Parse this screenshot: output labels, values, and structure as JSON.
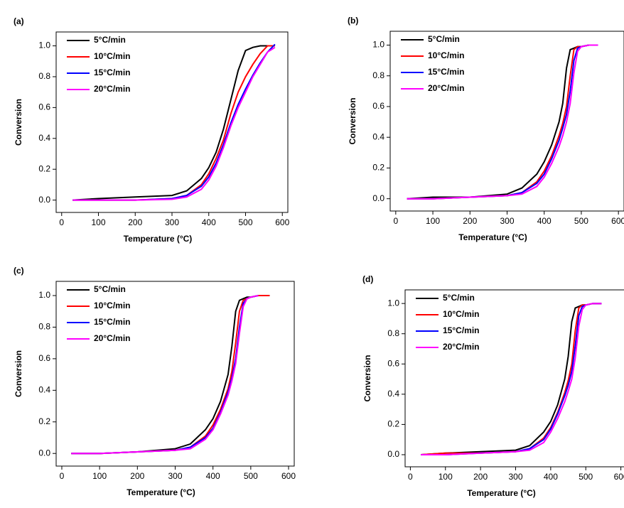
{
  "chart_data": [
    {
      "type": "line",
      "title": "(a)",
      "xlabel": "Temperature (°C)",
      "ylabel": "Conversion",
      "legend": "upper left",
      "x": [
        30,
        100,
        200,
        300,
        340,
        380,
        400,
        420,
        440,
        460,
        480,
        500,
        520,
        540,
        560,
        580
      ],
      "series": [
        {
          "name": "5°C/min",
          "color": "#000000",
          "values": [
            0,
            0.01,
            0.02,
            0.03,
            0.06,
            0.14,
            0.21,
            0.31,
            0.46,
            0.65,
            0.84,
            0.97,
            0.99,
            1.0,
            1.0,
            null
          ]
        },
        {
          "name": "10°C/min",
          "color": "#ff0000",
          "values": [
            0,
            0,
            0,
            0.01,
            0.03,
            0.1,
            0.17,
            0.27,
            0.39,
            0.56,
            0.7,
            0.8,
            0.88,
            0.95,
            1.0,
            1.0
          ]
        },
        {
          "name": "15°C/min",
          "color": "#0000ff",
          "values": [
            0,
            0,
            0,
            0.01,
            0.03,
            0.09,
            0.15,
            0.24,
            0.36,
            0.5,
            0.62,
            0.72,
            0.81,
            0.89,
            0.96,
            1.01
          ]
        },
        {
          "name": "20°C/min",
          "color": "#ff00ff",
          "values": [
            0,
            0,
            0,
            0.005,
            0.02,
            0.07,
            0.13,
            0.22,
            0.34,
            0.48,
            0.6,
            0.7,
            0.8,
            0.88,
            0.96,
            0.99
          ]
        }
      ],
      "xlim": [
        -15,
        615
      ],
      "ylim": [
        -0.08,
        1.09
      ],
      "xticks": [
        0,
        100,
        200,
        300,
        400,
        500,
        600
      ],
      "yticks": [
        {
          "value": 0,
          "label": "0.0"
        },
        0.2,
        0.4,
        0.6,
        0.8,
        {
          "value": 1,
          "label": "1.0"
        }
      ]
    },
    {
      "type": "line",
      "title": "(b)",
      "xlabel": "Temperature (°C)",
      "ylabel": "Conversion",
      "legend": "upper left",
      "x": [
        30,
        100,
        200,
        300,
        340,
        380,
        400,
        420,
        440,
        450,
        460,
        470,
        480,
        490,
        500,
        520,
        545
      ],
      "series": [
        {
          "name": "5°C/min",
          "color": "#000000",
          "values": [
            0,
            0.01,
            0.01,
            0.03,
            0.07,
            0.16,
            0.24,
            0.35,
            0.5,
            0.62,
            0.85,
            0.97,
            0.98,
            0.99,
            0.99,
            1.0,
            1.0
          ]
        },
        {
          "name": "10°C/min",
          "color": "#ff0000",
          "values": [
            0,
            0,
            0.01,
            0.02,
            0.04,
            0.11,
            0.18,
            0.28,
            0.41,
            0.49,
            0.6,
            0.8,
            0.97,
            0.99,
            0.99,
            1.0,
            1.0
          ]
        },
        {
          "name": "15°C/min",
          "color": "#0000ff",
          "values": [
            0,
            0,
            0.01,
            0.02,
            0.04,
            0.1,
            0.16,
            0.26,
            0.38,
            0.46,
            0.55,
            0.7,
            0.9,
            0.98,
            0.99,
            1.0,
            1.0
          ]
        },
        {
          "name": "20°C/min",
          "color": "#ff00ff",
          "values": [
            0,
            0,
            0.01,
            0.02,
            0.03,
            0.08,
            0.14,
            0.23,
            0.34,
            0.41,
            0.5,
            0.62,
            0.82,
            0.96,
            0.99,
            1.0,
            1.0
          ]
        }
      ],
      "xlim": [
        -15,
        615
      ],
      "ylim": [
        -0.08,
        1.09
      ],
      "xticks": [
        0,
        100,
        200,
        300,
        400,
        500,
        600
      ],
      "yticks": [
        {
          "value": 0,
          "label": "0.0"
        },
        0.2,
        0.4,
        0.6,
        0.8,
        {
          "value": 1,
          "label": "1.0"
        }
      ]
    },
    {
      "type": "line",
      "title": "(c)",
      "xlabel": "Temperature (°C)",
      "ylabel": "Conversion",
      "legend": "upper left",
      "x": [
        25,
        100,
        200,
        300,
        340,
        380,
        400,
        420,
        440,
        450,
        460,
        470,
        480,
        490,
        500,
        520,
        550
      ],
      "series": [
        {
          "name": "5°C/min",
          "color": "#000000",
          "values": [
            0,
            0,
            0.01,
            0.03,
            0.06,
            0.15,
            0.22,
            0.33,
            0.5,
            0.68,
            0.9,
            0.97,
            0.98,
            0.99,
            0.99,
            1.0,
            1.0
          ]
        },
        {
          "name": "10°C/min",
          "color": "#ff0000",
          "values": [
            0,
            0,
            0.01,
            0.02,
            0.04,
            0.11,
            0.18,
            0.28,
            0.41,
            0.52,
            0.7,
            0.9,
            0.97,
            0.98,
            0.99,
            1.0,
            1.0
          ]
        },
        {
          "name": "15°C/min",
          "color": "#0000ff",
          "values": [
            0,
            0,
            0.01,
            0.02,
            0.04,
            0.1,
            0.16,
            0.26,
            0.39,
            0.48,
            0.6,
            0.8,
            0.95,
            0.98,
            0.99,
            1.0,
            null
          ]
        },
        {
          "name": "20°C/min",
          "color": "#ff00ff",
          "values": [
            0,
            0,
            0.01,
            0.02,
            0.03,
            0.09,
            0.15,
            0.25,
            0.37,
            0.46,
            0.57,
            0.76,
            0.93,
            0.98,
            0.99,
            1.0,
            null
          ]
        }
      ],
      "xlim": [
        -15,
        615
      ],
      "ylim": [
        -0.08,
        1.09
      ],
      "xticks": [
        0,
        100,
        200,
        300,
        400,
        500,
        600
      ],
      "yticks": [
        {
          "value": 0,
          "label": "0.0"
        },
        0.2,
        0.4,
        0.6,
        0.8,
        {
          "value": 1,
          "label": "1.0"
        }
      ]
    },
    {
      "type": "line",
      "title": "(d)",
      "xlabel": "Temperature (°C)",
      "ylabel": "Conversion",
      "legend": "upper left",
      "x": [
        30,
        100,
        200,
        300,
        340,
        380,
        400,
        420,
        440,
        450,
        460,
        470,
        480,
        490,
        500,
        520,
        545
      ],
      "series": [
        {
          "name": "5°C/min",
          "color": "#000000",
          "values": [
            0,
            0.01,
            0.02,
            0.03,
            0.06,
            0.15,
            0.22,
            0.33,
            0.5,
            0.65,
            0.88,
            0.97,
            0.98,
            0.99,
            0.99,
            1.0,
            1.0
          ]
        },
        {
          "name": "10°C/min",
          "color": "#ff0000",
          "values": [
            0,
            0.01,
            0.01,
            0.02,
            0.04,
            0.11,
            0.18,
            0.28,
            0.41,
            0.49,
            0.6,
            0.82,
            0.97,
            0.99,
            0.99,
            1.0,
            1.0
          ]
        },
        {
          "name": "15°C/min",
          "color": "#0000ff",
          "values": [
            0,
            0,
            0.01,
            0.02,
            0.04,
            0.1,
            0.17,
            0.27,
            0.39,
            0.46,
            0.55,
            0.72,
            0.92,
            0.98,
            0.99,
            1.0,
            1.0
          ]
        },
        {
          "name": "20°C/min",
          "color": "#ff00ff",
          "values": [
            0,
            0,
            0.01,
            0.02,
            0.03,
            0.08,
            0.15,
            0.24,
            0.35,
            0.42,
            0.5,
            0.64,
            0.85,
            0.96,
            0.99,
            1.0,
            1.0
          ]
        }
      ],
      "xlim": [
        -15,
        615
      ],
      "ylim": [
        -0.08,
        1.09
      ],
      "xticks": [
        0,
        100,
        200,
        300,
        400,
        500,
        600
      ],
      "yticks": [
        {
          "value": 0,
          "label": "0.0"
        },
        0.2,
        0.4,
        0.6,
        0.8,
        {
          "value": 1,
          "label": "1.0"
        }
      ]
    }
  ]
}
